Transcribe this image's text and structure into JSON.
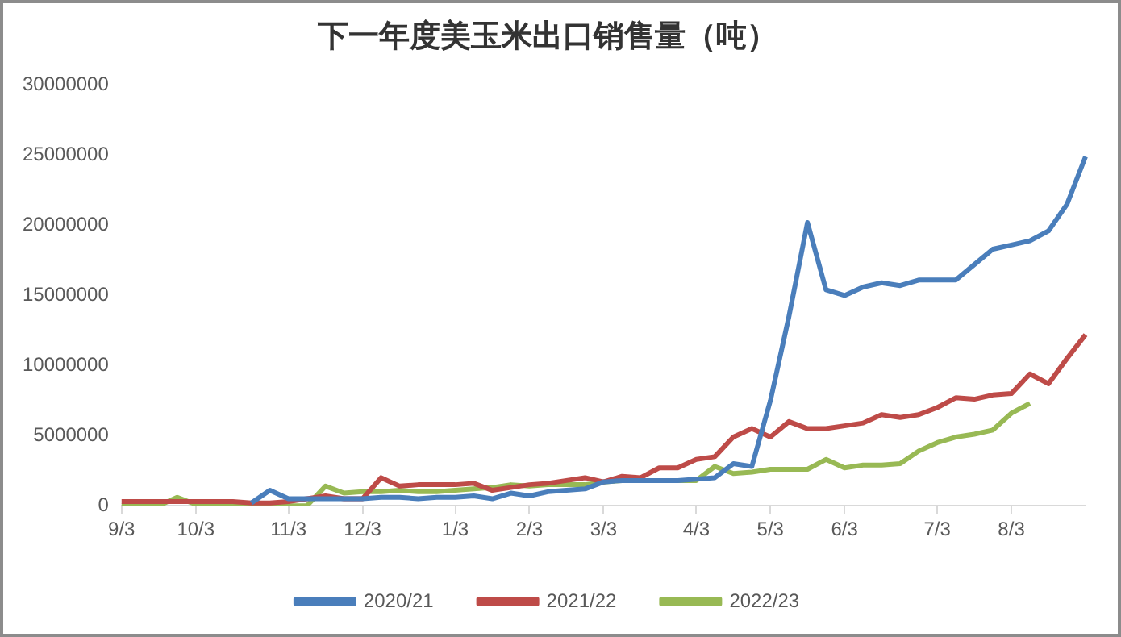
{
  "chart_data": {
    "type": "line",
    "title": "下一年度美玉米出口销售量（吨）",
    "categories": [
      "9/3",
      null,
      null,
      null,
      "10/3",
      null,
      null,
      null,
      null,
      "11/3",
      null,
      null,
      null,
      "12/3",
      null,
      null,
      null,
      null,
      "1/3",
      null,
      null,
      null,
      "2/3",
      null,
      null,
      null,
      "3/3",
      null,
      null,
      null,
      null,
      "4/3",
      null,
      null,
      null,
      "5/3",
      null,
      null,
      null,
      "6/3",
      null,
      null,
      null,
      null,
      "7/3",
      null,
      null,
      null,
      "8/3",
      null,
      null,
      null,
      null
    ],
    "series": [
      {
        "name": "2020/21",
        "color": "#4a7ebb",
        "values": [
          null,
          null,
          null,
          null,
          null,
          null,
          null,
          200000,
          1100000,
          500000,
          500000,
          500000,
          500000,
          500000,
          600000,
          600000,
          500000,
          600000,
          600000,
          700000,
          500000,
          900000,
          700000,
          1000000,
          1100000,
          1200000,
          1700000,
          1800000,
          1800000,
          1800000,
          1800000,
          1900000,
          2000000,
          3000000,
          2800000,
          7500000,
          13500000,
          20200000,
          15400000,
          15000000,
          15600000,
          15900000,
          15700000,
          16100000,
          16100000,
          16100000,
          17200000,
          18300000,
          18600000,
          18900000,
          19600000,
          21500000,
          24900000
        ]
      },
      {
        "name": "2021/22",
        "color": "#be4b48",
        "values": [
          300000,
          300000,
          300000,
          300000,
          300000,
          300000,
          300000,
          200000,
          200000,
          300000,
          500000,
          700000,
          500000,
          500000,
          2000000,
          1400000,
          1500000,
          1500000,
          1500000,
          1600000,
          1100000,
          1300000,
          1500000,
          1600000,
          1800000,
          2000000,
          1700000,
          2100000,
          2000000,
          2700000,
          2700000,
          3300000,
          3500000,
          4900000,
          5500000,
          4900000,
          6000000,
          5500000,
          5500000,
          5700000,
          5900000,
          6500000,
          6300000,
          6500000,
          7000000,
          7700000,
          7600000,
          7900000,
          8000000,
          9400000,
          8700000,
          10500000,
          12200000
        ]
      },
      {
        "name": "2022/23",
        "color": "#98b954",
        "values": [
          0,
          0,
          0,
          600000,
          100000,
          100000,
          0,
          0,
          0,
          0,
          0,
          1400000,
          900000,
          1000000,
          1000000,
          1100000,
          1000000,
          1000000,
          1100000,
          1200000,
          1300000,
          1500000,
          1400000,
          1500000,
          1500000,
          1500000,
          1700000,
          1800000,
          1800000,
          1800000,
          1800000,
          1800000,
          2800000,
          2300000,
          2400000,
          2600000,
          2600000,
          2600000,
          3300000,
          2700000,
          2900000,
          2900000,
          3000000,
          3900000,
          4500000,
          4900000,
          5100000,
          5400000,
          6600000,
          7300000,
          null,
          null,
          null
        ]
      }
    ],
    "ylim": [
      0,
      30000000
    ],
    "yticks": [
      0,
      5000000,
      10000000,
      15000000,
      20000000,
      25000000,
      30000000
    ],
    "grid": false,
    "legend": "bottom",
    "marker": "none",
    "line_style": "solid"
  }
}
